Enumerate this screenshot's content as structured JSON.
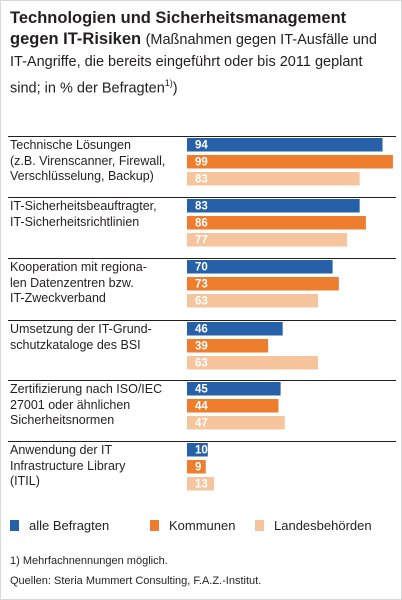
{
  "title": {
    "main": "Technologien und Sicherheitsmanagement gegen IT-Risiken",
    "subtitle": "(Maßnahmen gegen IT-Ausfälle und IT-Angriffe, die bereits eingeführt oder bis 2011 geplant sind; in % der Befragten",
    "footnote_marker": "1)",
    "subtitle_end": ")"
  },
  "colors": {
    "alle_befragten": "#2660a8",
    "kommunen": "#ee7d2e",
    "landesbehoerden": "#f6c49d",
    "text": "#231f20"
  },
  "legend": [
    {
      "label": "alle Befragten",
      "color": "#2660a8"
    },
    {
      "label": "Kommunen",
      "color": "#ee7d2e"
    },
    {
      "label": "Landesbehörden",
      "color": "#f6c49d"
    }
  ],
  "footnote": "1) Mehrfachnennungen möglich.",
  "source": "Quellen: Steria Mummert Consulting, F.A.Z.-Institut.",
  "chart_data": {
    "type": "bar",
    "orientation": "horizontal",
    "xlim": [
      0,
      100
    ],
    "categories": [
      "Technische Lösungen (z.B. Virenscanner, Firewall, Verschlüsselung, Backup)",
      "IT-Sicherheitsbeauftragter, IT-Sicherheitsrichtlinien",
      "Kooperation mit regionalen Datenzentren bzw. IT-Zweckverband",
      "Umsetzung der IT-Grundschutzkataloge des BSI",
      "Zertifizierung nach ISO/IEC 27001 oder ähnlichen Sicherheitsnormen",
      "Anwendung der IT Infrastructure Library (ITIL)"
    ],
    "category_lines": [
      [
        "Technische Lösungen",
        "(z.B. Virenscanner, Firewall,",
        "Verschlüsselung, Backup)"
      ],
      [
        "IT-Sicherheitsbeauftragter,",
        "IT-Sicherheitsrichtlinien"
      ],
      [
        "Kooperation mit regiona-",
        "len Datenzentren bzw.",
        "IT-Zweckverband"
      ],
      [
        "Umsetzung der IT-Grund-",
        "schutzkataloge des BSI"
      ],
      [
        "Zertifizierung nach ISO/IEC",
        "27001 oder ähnlichen",
        "Sicherheitsnormen"
      ],
      [
        "Anwendung  der IT",
        "Infrastructure Library",
        "(ITIL)"
      ]
    ],
    "series": [
      {
        "name": "alle Befragten",
        "color": "#2660a8",
        "values": [
          94,
          83,
          70,
          46,
          45,
          10
        ]
      },
      {
        "name": "Kommunen",
        "color": "#ee7d2e",
        "values": [
          99,
          86,
          73,
          39,
          44,
          9
        ]
      },
      {
        "name": "Landesbehörden",
        "color": "#f6c49d",
        "values": [
          83,
          77,
          63,
          63,
          47,
          13
        ]
      }
    ],
    "data_labels": true,
    "grid": false,
    "legend_position": "bottom"
  }
}
